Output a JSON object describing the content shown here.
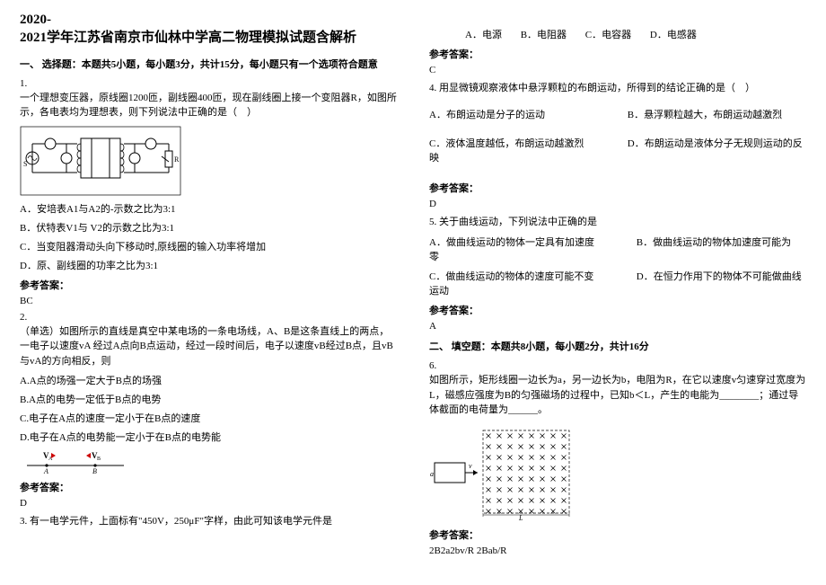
{
  "title_line1": "2020-",
  "title_line2": "2021学年江苏省南京市仙林中学高二物理模拟试题含解析",
  "section1": "一、 选择题：本题共5小题，每小题3分，共计15分，每小题只有一个选项符合题意",
  "q1": {
    "num": "1.",
    "stem": "一个理想变压器，原线圈1200匝，副线圈400匝，现在副线圈上接一个变阻器R，如图所示，各电表均为理想表，则下列说法中正确的是（　）",
    "A": "A．安培表A1与A2的-示数之比为3:1",
    "B": "B．伏特表V1与 V2的示数之比为3:1",
    "C": "C．当变阻器滑动头向下移动时,原线圈的输入功率将增加",
    "D": "D．原、副线圈的功率之比为3:1",
    "ans_label": "参考答案：",
    "ans": "BC"
  },
  "q2": {
    "num": "2.",
    "stem": "（单选）如图所示的直线是真空中某电场的一条电场线，A、B是这条直线上的两点，一电子以速度vA 经过A点向B点运动，经过一段时间后，电子以速度vB经过B点，且vB与vA的方向相反，则",
    "A": "A.A点的场强一定大于B点的场强",
    "B": "B.A点的电势一定低于B点的电势",
    "C": "C.电子在A点的速度一定小于在B点的速度",
    "D": "D.电子在A点的电势能一定小于在B点的电势能",
    "ans_label": "参考答案：",
    "ans": "D"
  },
  "q3": {
    "stem": "3. 有一电学元件，上面标有\"450V，250μF\"字样，由此可知该电学元件是",
    "A": "A．电源",
    "B": "B．电阻器",
    "C": "C．电容器",
    "D": "D．电感器",
    "ans_label": "参考答案：",
    "ans": "C"
  },
  "q4": {
    "stem": "4. 用显微镜观察液体中悬浮颗粒的布朗运动，所得到的结论正确的是（　）",
    "A": "A．布朗运动是分子的运动",
    "B": "B．悬浮颗粒越大，布朗运动越激烈",
    "C": "C．液体温度越低，布朗运动越激烈",
    "D": "D．布朗运动是液体分子无规则运动的反映",
    "ans_label": "参考答案：",
    "ans": "D"
  },
  "q5": {
    "stem": "5. 关于曲线运动，下列说法中正确的是",
    "A": "A．做曲线运动的物体一定具有加速度",
    "B": "B．做曲线运动的物体加速度可能为零",
    "C": "C．做曲线运动的物体的速度可能不变",
    "D": "D．在恒力作用下的物体不可能做曲线运动",
    "ans_label": "参考答案：",
    "ans": "A"
  },
  "section2": "二、 填空题：本题共8小题，每小题2分，共计16分",
  "q6": {
    "num": "6.",
    "stem": "如图所示，矩形线圈一边长为a，另一边长为b，电阻为R，在它以速度v匀速穿过宽度为L，磁感应强度为B的匀强磁场的过程中，已知b＜L，产生的电能为________；通过导体截面的电荷量为______。",
    "ans_label": "参考答案：",
    "ans": "2B2a2bv/R        2Bab/R"
  },
  "colors": {
    "text": "#000000",
    "bg": "#ffffff",
    "fig_line": "#000000",
    "fig_red": "#cc0000",
    "fig_gray": "#aaaaaa"
  }
}
